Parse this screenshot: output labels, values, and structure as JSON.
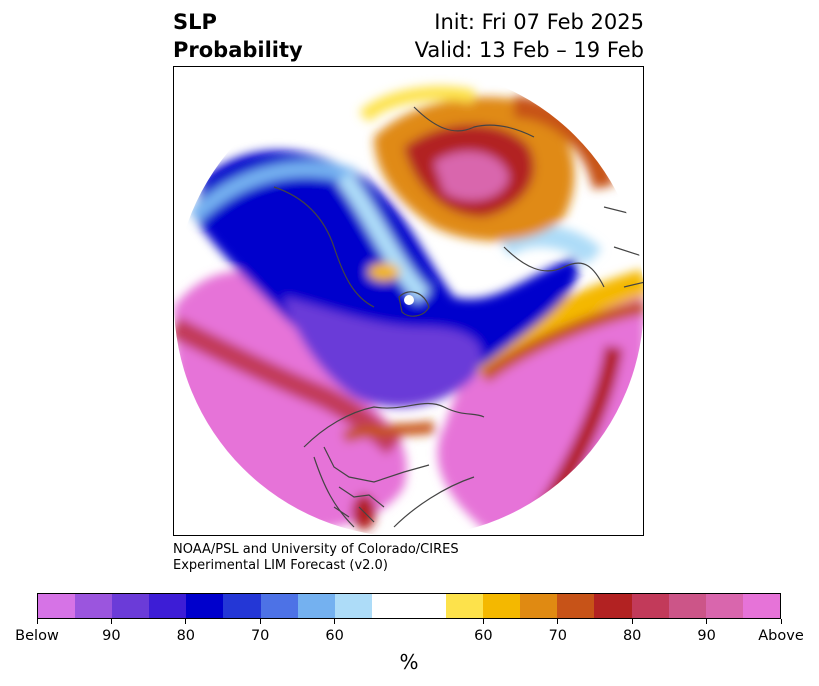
{
  "title": {
    "left_line1": "SLP",
    "left_line2": "Probability",
    "right_line1": "Init: Fri 07 Feb 2025",
    "right_line2": "Valid: 13 Feb – 19 Feb"
  },
  "credit": {
    "line1": "NOAA/PSL and University of Colorado/CIRES",
    "line2": "Experimental LIM Forecast (v2.0)"
  },
  "colorbar": {
    "colors": [
      "#d673e6",
      "#9b55de",
      "#6b3bd8",
      "#3d1dd6",
      "#0000cc",
      "#2437d6",
      "#4d72e6",
      "#74b1f0",
      "#addcf8",
      "#ffffff",
      "#ffffff",
      "#fde24b",
      "#f4b800",
      "#e08a12",
      "#c75318",
      "#b22222",
      "#c23a5a",
      "#cc5588",
      "#d966ad",
      "#e673d8"
    ],
    "tick_labels": [
      "Below",
      "90",
      "80",
      "70",
      "60",
      "60",
      "70",
      "80",
      "90",
      "Above"
    ],
    "unit": "%"
  },
  "map": {
    "region": "Northern Hemisphere polar stereographic",
    "colors": {
      "strong_below": "#0000cc",
      "below": "#6b3bd8",
      "light_below": "#addcf8",
      "strong_above": "#b22222",
      "above": "#e673d8",
      "near_normal": "#ffffff",
      "coastline": "#444444"
    }
  }
}
